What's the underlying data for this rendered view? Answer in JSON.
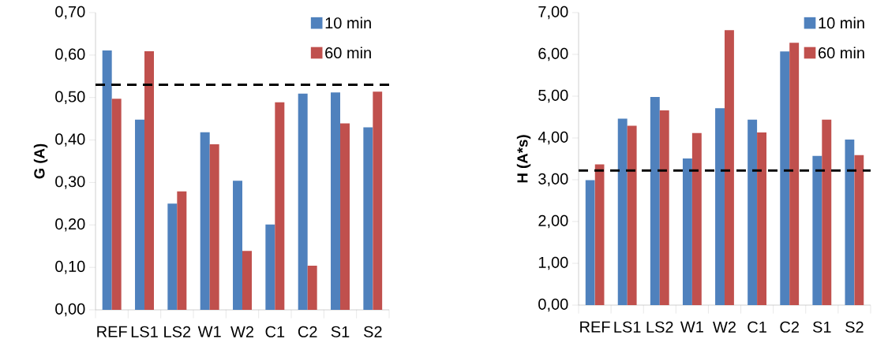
{
  "chart_data": [
    {
      "type": "bar",
      "ylabel": "G (A)",
      "categories": [
        "REF",
        "LS1",
        "LS2",
        "W1",
        "W2",
        "C1",
        "C2",
        "S1",
        "S2"
      ],
      "series": [
        {
          "name": "10 min",
          "color": "#4f81bd",
          "values": [
            0.611,
            0.448,
            0.25,
            0.418,
            0.304,
            0.201,
            0.509,
            0.512,
            0.43
          ]
        },
        {
          "name": "60 min",
          "color": "#c0504d",
          "values": [
            0.497,
            0.609,
            0.279,
            0.39,
            0.139,
            0.489,
            0.104,
            0.439,
            0.514
          ]
        }
      ],
      "ylim": [
        0,
        0.7
      ],
      "yticks": [
        {
          "value": 0,
          "label": "0,00"
        },
        {
          "value": 0.1,
          "label": "0,10"
        },
        {
          "value": 0.2,
          "label": "0,20"
        },
        {
          "value": 0.3,
          "label": "0,30"
        },
        {
          "value": 0.4,
          "label": "0,40"
        },
        {
          "value": 0.5,
          "label": "0,50"
        },
        {
          "value": 0.6,
          "label": "0,60"
        },
        {
          "value": 0.7,
          "label": "0,70"
        }
      ],
      "ref_lines": [
        {
          "axis": "y",
          "value": 0.53,
          "color": "#000000",
          "line_style": "dashed"
        }
      ],
      "legend": "top right",
      "grid": false
    },
    {
      "type": "bar",
      "ylabel": "H (A*s)",
      "categories": [
        "REF",
        "LS1",
        "LS2",
        "W1",
        "W2",
        "C1",
        "C2",
        "S1",
        "S2"
      ],
      "series": [
        {
          "name": "10 min",
          "color": "#4f81bd",
          "values": [
            2.99,
            4.46,
            4.98,
            3.51,
            4.71,
            4.44,
            6.07,
            3.57,
            3.96
          ]
        },
        {
          "name": "60 min",
          "color": "#c0504d",
          "values": [
            3.37,
            4.29,
            4.66,
            4.12,
            6.58,
            4.13,
            6.28,
            4.44,
            3.59
          ]
        }
      ],
      "ylim": [
        0,
        7
      ],
      "yticks": [
        {
          "value": 0,
          "label": "0,00"
        },
        {
          "value": 1,
          "label": "1,00"
        },
        {
          "value": 2,
          "label": "2,00"
        },
        {
          "value": 3,
          "label": "3,00"
        },
        {
          "value": 4,
          "label": "4,00"
        },
        {
          "value": 5,
          "label": "5,00"
        },
        {
          "value": 6,
          "label": "6,00"
        },
        {
          "value": 7,
          "label": "7,00"
        }
      ],
      "ref_lines": [
        {
          "axis": "y",
          "value": 3.22,
          "color": "#000000",
          "line_style": "dashed"
        }
      ],
      "legend": "top right",
      "grid": false
    }
  ]
}
